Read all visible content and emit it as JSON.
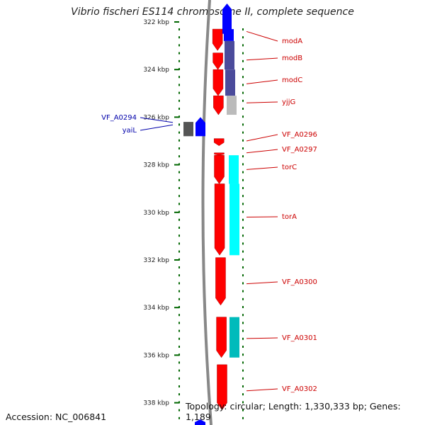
{
  "title": "Vibrio fischeri ES114 chromosome II, complete sequence",
  "accession_label": "Accession: NC_006841",
  "summary_label": "Topology: circular; Length: 1,330,333 bp; Genes: 1,189",
  "colors": {
    "forward": "#ff0000",
    "reverse": "#0000ff",
    "label_forward": "#cc0000",
    "label_reverse": "#0000aa",
    "backbone": "#888888",
    "tick": "#006600",
    "cog_navy": "#4b4b9b",
    "cog_gray": "#bbbbbb",
    "cog_cyan": "#00ffff",
    "cog_teal": "#00bbbb",
    "cog_dark": "#555555"
  },
  "scale_labels": [
    "322 kbp",
    "324 kbp",
    "326 kbp",
    "328 kbp",
    "330 kbp",
    "332 kbp",
    "334 kbp",
    "336 kbp",
    "338 kbp"
  ],
  "scale_kbp": [
    322,
    324,
    326,
    328,
    330,
    332,
    334,
    336,
    338
  ],
  "genes": [
    {
      "name": "modA",
      "strand": "forward",
      "start_kbp": 322.3,
      "end_kbp": 323.2
    },
    {
      "name": "modB",
      "strand": "forward",
      "start_kbp": 323.3,
      "end_kbp": 324.0
    },
    {
      "name": "modC",
      "strand": "forward",
      "start_kbp": 324.0,
      "end_kbp": 325.1
    },
    {
      "name": "yjjG",
      "strand": "forward",
      "start_kbp": 325.1,
      "end_kbp": 325.9
    },
    {
      "name": "VF_A0294",
      "strand": "reverse",
      "start_kbp": 326.2,
      "end_kbp": 326.8
    },
    {
      "name": "yaiL",
      "strand": "reverse",
      "start_kbp": 326.2,
      "end_kbp": 326.8
    },
    {
      "name": "VF_A0296",
      "strand": "forward",
      "start_kbp": 326.9,
      "end_kbp": 327.2
    },
    {
      "name": "VF_A0297",
      "strand": "forward",
      "start_kbp": 327.5,
      "end_kbp": 327.6
    },
    {
      "name": "torC",
      "strand": "forward",
      "start_kbp": 327.6,
      "end_kbp": 328.8
    },
    {
      "name": "torA",
      "strand": "forward",
      "start_kbp": 328.8,
      "end_kbp": 331.8
    },
    {
      "name": "VF_A0300",
      "strand": "forward",
      "start_kbp": 331.9,
      "end_kbp": 333.9
    },
    {
      "name": "VF_A0301",
      "strand": "forward",
      "start_kbp": 334.4,
      "end_kbp": 336.1
    },
    {
      "name": "VF_A0302",
      "strand": "forward",
      "start_kbp": 336.4,
      "end_kbp": 338.3
    }
  ]
}
